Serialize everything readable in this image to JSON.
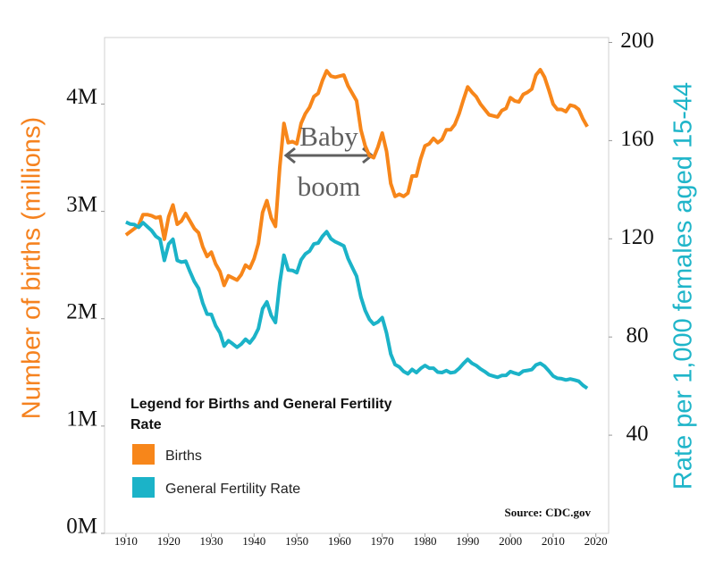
{
  "chart_data": {
    "type": "line",
    "x": [
      1910,
      1911,
      1912,
      1913,
      1914,
      1915,
      1916,
      1917,
      1918,
      1919,
      1920,
      1921,
      1922,
      1923,
      1924,
      1925,
      1926,
      1927,
      1928,
      1929,
      1930,
      1931,
      1932,
      1933,
      1934,
      1935,
      1936,
      1937,
      1938,
      1939,
      1940,
      1941,
      1942,
      1943,
      1944,
      1945,
      1946,
      1947,
      1948,
      1949,
      1950,
      1951,
      1952,
      1953,
      1954,
      1955,
      1956,
      1957,
      1958,
      1959,
      1960,
      1961,
      1962,
      1963,
      1964,
      1965,
      1966,
      1967,
      1968,
      1969,
      1970,
      1971,
      1972,
      1973,
      1974,
      1975,
      1976,
      1977,
      1978,
      1979,
      1980,
      1981,
      1982,
      1983,
      1984,
      1985,
      1986,
      1987,
      1988,
      1989,
      1990,
      1991,
      1992,
      1993,
      1994,
      1995,
      1996,
      1997,
      1998,
      1999,
      2000,
      2001,
      2002,
      2003,
      2004,
      2005,
      2006,
      2007,
      2008,
      2009,
      2010,
      2011,
      2012,
      2013,
      2014,
      2015,
      2016,
      2017,
      2018
    ],
    "series": [
      {
        "name": "Births",
        "color": "#f7861a",
        "values": [
          2.78,
          2.81,
          2.84,
          2.87,
          2.97,
          2.97,
          2.96,
          2.94,
          2.95,
          2.74,
          2.95,
          3.06,
          2.88,
          2.91,
          2.98,
          2.91,
          2.84,
          2.8,
          2.67,
          2.58,
          2.62,
          2.51,
          2.44,
          2.31,
          2.4,
          2.38,
          2.36,
          2.41,
          2.5,
          2.47,
          2.56,
          2.7,
          2.99,
          3.1,
          2.94,
          2.86,
          3.41,
          3.82,
          3.64,
          3.65,
          3.63,
          3.82,
          3.91,
          3.97,
          4.07,
          4.1,
          4.22,
          4.31,
          4.26,
          4.25,
          4.26,
          4.27,
          4.17,
          4.1,
          4.03,
          3.76,
          3.61,
          3.52,
          3.5,
          3.6,
          3.73,
          3.56,
          3.26,
          3.14,
          3.16,
          3.14,
          3.17,
          3.33,
          3.33,
          3.49,
          3.61,
          3.63,
          3.68,
          3.64,
          3.67,
          3.76,
          3.76,
          3.81,
          3.91,
          4.04,
          4.16,
          4.11,
          4.07,
          4.0,
          3.95,
          3.9,
          3.89,
          3.88,
          3.94,
          3.96,
          4.06,
          4.03,
          4.02,
          4.09,
          4.11,
          4.14,
          4.27,
          4.32,
          4.25,
          4.13,
          4.0,
          3.95,
          3.95,
          3.93,
          3.99,
          3.98,
          3.95,
          3.86,
          3.79
        ]
      },
      {
        "name": "General Fertility Rate",
        "color": "#1bb3c8",
        "axis": "y2",
        "values": [
          126.8,
          126,
          125.8,
          124.7,
          126.6,
          125,
          123.4,
          121,
          119.8,
          111.2,
          117.9,
          119.8,
          111.2,
          110.5,
          110.9,
          106.6,
          102.6,
          99.8,
          93.8,
          89.3,
          89.2,
          84.6,
          81.7,
          76.3,
          78.5,
          77.2,
          75.8,
          77.1,
          79.1,
          77.6,
          79.9,
          83.4,
          91.5,
          94.3,
          88.8,
          85.9,
          101.9,
          113.3,
          107.3,
          107.1,
          106.2,
          111.4,
          113.8,
          115,
          117.9,
          118.3,
          121,
          122.9,
          120,
          118.8,
          118,
          117.1,
          112,
          108.3,
          104.7,
          96.3,
          90.8,
          87.2,
          85.2,
          86.1,
          87.9,
          81.6,
          73.1,
          68.8,
          67.8,
          66,
          65,
          66.8,
          65.5,
          67.2,
          68.4,
          67.3,
          67.3,
          65.7,
          65.5,
          66.3,
          65.4,
          65.7,
          67.2,
          69.2,
          70.9,
          69.3,
          68.4,
          67,
          65.9,
          64.6,
          64.1,
          63.6,
          64.3,
          64.4,
          65.9,
          65.3,
          64.8,
          66.1,
          66.4,
          66.7,
          68.6,
          69.3,
          68.1,
          66.2,
          64.1,
          63.2,
          63,
          62.5,
          62.9,
          62.5,
          62,
          60.3,
          59.1
        ]
      }
    ],
    "xlim": [
      1905,
      2023
    ],
    "xticks": [
      1910,
      1920,
      1930,
      1940,
      1950,
      1960,
      1970,
      1980,
      1990,
      2000,
      2010,
      2020
    ],
    "ylim": [
      0,
      4.62
    ],
    "yticks": [
      {
        "value": 0,
        "label": "0M"
      },
      {
        "value": 1,
        "label": "1M"
      },
      {
        "value": 2,
        "label": "2M"
      },
      {
        "value": 3,
        "label": "3M"
      },
      {
        "value": 4,
        "label": "4M"
      }
    ],
    "y2lim": [
      0,
      202
    ],
    "y2ticks": [
      40,
      80,
      120,
      160,
      200
    ],
    "ylabel": "Number of births (millions)",
    "y2label": "Rate per 1,000 females aged 15-44",
    "annotation": "Baby boom",
    "source": "Source: CDC.gov",
    "legend": {
      "title": "Legend for Births and General Fertility Rate",
      "position": "lower left"
    }
  }
}
